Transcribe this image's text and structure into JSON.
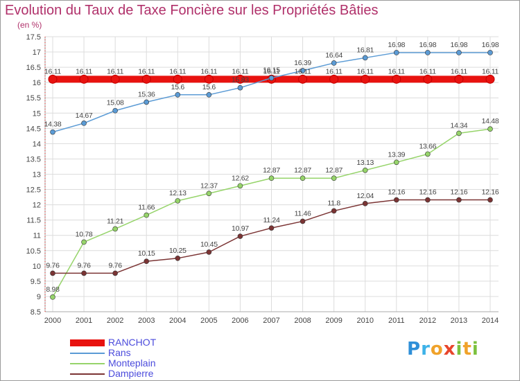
{
  "header": {
    "title": "Evolution du Taux de Taxe Foncière sur les Propriétés Bâties",
    "unit": "(en %)"
  },
  "logo": {
    "text": "Proxiti",
    "letters": [
      {
        "ch": "P",
        "color": "#2f8fd8"
      },
      {
        "ch": "r",
        "color": "#3db2e8"
      },
      {
        "ch": "o",
        "color": "#f0a22a"
      },
      {
        "ch": "x",
        "color": "#e8452c"
      },
      {
        "ch": "i",
        "color": "#7cc13e"
      },
      {
        "ch": "t",
        "color": "#f0a22a"
      },
      {
        "ch": "i",
        "color": "#7cc13e"
      }
    ]
  },
  "chart_data": {
    "type": "line",
    "x": [
      "2000",
      "2001",
      "2002",
      "2003",
      "2004",
      "2005",
      "2006",
      "2007",
      "2008",
      "2009",
      "2010",
      "2011",
      "2012",
      "2013",
      "2014"
    ],
    "ylim": [
      8.5,
      17.5
    ],
    "y_ticks": [
      "8.5",
      "9",
      "9.5",
      "10",
      "10.5",
      "11",
      "11.5",
      "12",
      "12.5",
      "13",
      "13.5",
      "14",
      "14.5",
      "15",
      "15.5",
      "16",
      "16.5",
      "17",
      "17.5"
    ],
    "grid": true,
    "legend_position": "bottom-left",
    "series": [
      {
        "name": "RANCHOT",
        "color": "#e8120f",
        "values": [
          16.11,
          16.11,
          16.11,
          16.11,
          16.11,
          16.11,
          16.11,
          16.11,
          16.11,
          16.11,
          16.11,
          16.11,
          16.11,
          16.11,
          16.11
        ],
        "labels": [
          "16.11",
          "16.11",
          "16.11",
          "16.11",
          "16.11",
          "16.11",
          "16.11",
          "16.11",
          "16.11",
          "16.11",
          "16.11",
          "16.11",
          "16.11",
          "16.11",
          "16.11"
        ]
      },
      {
        "name": "Rans",
        "color": "#5b9bd5",
        "values": [
          14.38,
          14.67,
          15.08,
          15.36,
          15.6,
          15.6,
          15.83,
          16.15,
          16.39,
          16.64,
          16.81,
          16.98,
          16.98,
          16.98,
          16.98
        ],
        "labels": [
          "14.38",
          "14.67",
          "15.08",
          "15.36",
          "15.6",
          "15.6",
          "15.83",
          "16.15",
          "16.39",
          "16.64",
          "16.81",
          "16.98",
          "16.98",
          "16.98",
          "16.98"
        ]
      },
      {
        "name": "Monteplain",
        "color": "#96d46a",
        "values": [
          8.98,
          10.78,
          11.21,
          11.66,
          12.13,
          12.37,
          12.62,
          12.87,
          12.87,
          12.87,
          13.13,
          13.39,
          13.66,
          14.34,
          14.48
        ],
        "labels": [
          "8.98",
          "10.78",
          "11.21",
          "11.66",
          "12.13",
          "12.37",
          "12.62",
          "12.87",
          "12.87",
          "12.87",
          "13.13",
          "13.39",
          "13.66",
          "14.34",
          "14.48"
        ]
      },
      {
        "name": "Dampierre",
        "color": "#7b3434",
        "values": [
          9.76,
          9.76,
          9.76,
          10.15,
          10.25,
          10.45,
          10.97,
          11.24,
          11.46,
          11.8,
          12.04,
          12.16,
          12.16,
          12.16,
          12.16
        ],
        "labels": [
          "9.76",
          "9.76",
          "9.76",
          "10.15",
          "10.25",
          "10.45",
          "10.97",
          "11.24",
          "11.46",
          "11.8",
          "12.04",
          "12.16",
          "12.16",
          "12.16",
          "12.16"
        ]
      }
    ]
  }
}
